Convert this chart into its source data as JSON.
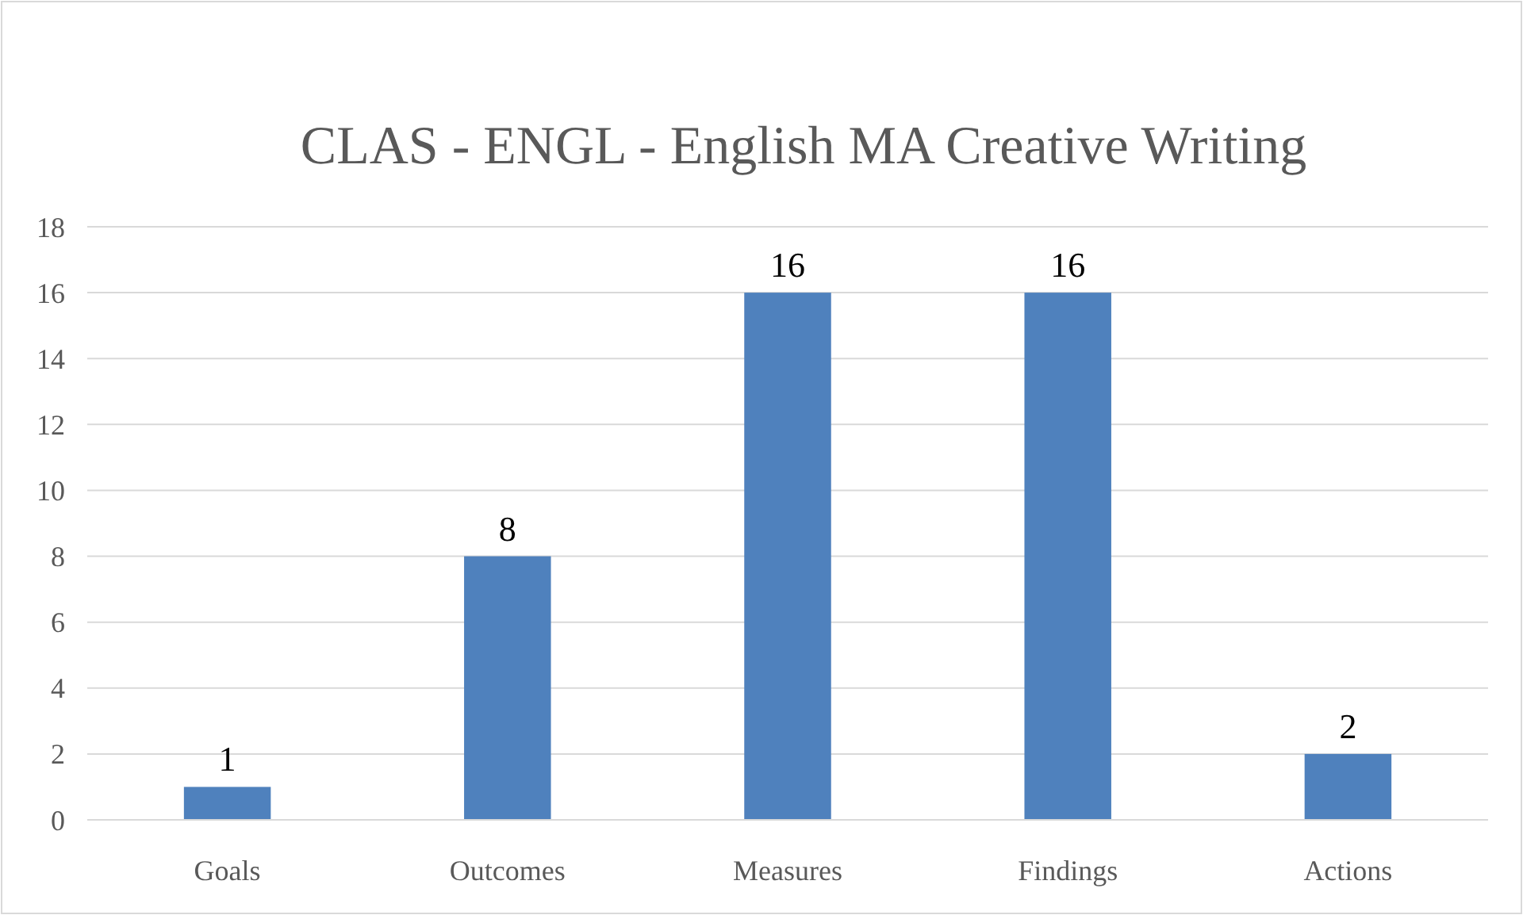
{
  "chart_data": {
    "type": "bar",
    "title": "CLAS - ENGL - English MA Creative Writing",
    "categories": [
      "Goals",
      "Outcomes",
      "Measures",
      "Findings",
      "Actions"
    ],
    "values": [
      1,
      8,
      16,
      16,
      2
    ],
    "color": "#4f81bd",
    "ylim": [
      0,
      18
    ],
    "yticks": [
      0,
      2,
      4,
      6,
      8,
      10,
      12,
      14,
      16,
      18
    ],
    "grid": "y",
    "data_labels": true
  }
}
